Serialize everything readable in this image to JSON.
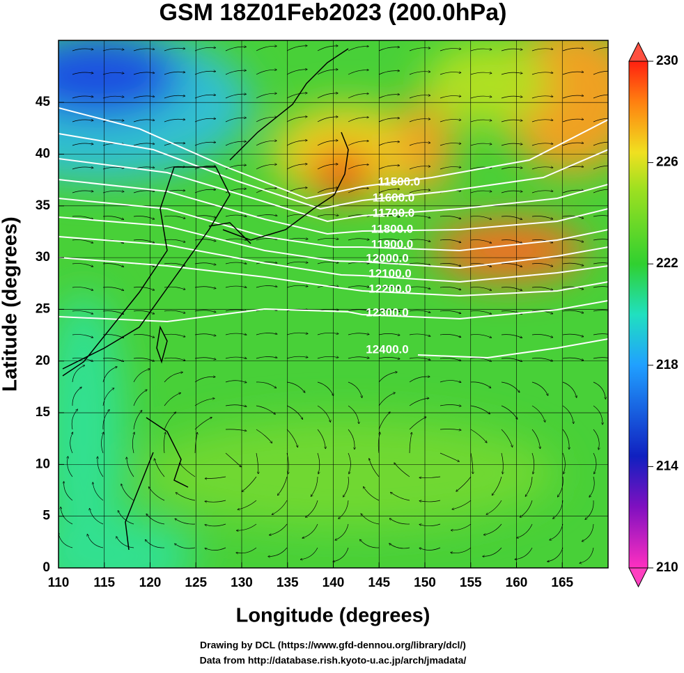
{
  "title": "GSM 18Z01Feb2023 (200.0hPa)",
  "x_axis": {
    "label": "Longitude (degrees)",
    "lim": [
      110,
      170
    ],
    "ticks": [
      110,
      115,
      120,
      125,
      130,
      135,
      140,
      145,
      150,
      155,
      160,
      165
    ]
  },
  "y_axis": {
    "label": "Latitude  (degrees)",
    "lim": [
      0,
      51
    ],
    "ticks": [
      0,
      5,
      10,
      15,
      20,
      25,
      30,
      35,
      40,
      45
    ]
  },
  "colorbar": {
    "lim": [
      210,
      230
    ],
    "ticks": [
      210,
      214,
      218,
      222,
      226,
      230
    ]
  },
  "contours": [
    {
      "value": 11500,
      "label": "11500.0"
    },
    {
      "value": 11600,
      "label": "11600.0"
    },
    {
      "value": 11700,
      "label": "11700.0"
    },
    {
      "value": 11800,
      "label": "11800.0"
    },
    {
      "value": 11900,
      "label": "11900.0"
    },
    {
      "value": 12000,
      "label": "12000.0"
    },
    {
      "value": 12100,
      "label": "12100.0"
    },
    {
      "value": 12200,
      "label": "12200.0"
    },
    {
      "value": 12300,
      "label": "12300.0"
    },
    {
      "value": 12400,
      "label": "12400.0"
    }
  ],
  "credits": [
    "Drawing by DCL (https://www.gfd-dennou.org/library/dcl/)",
    "Data from http://database.rish.kyoto-u.ac.jp/arch/jmadata/"
  ]
}
